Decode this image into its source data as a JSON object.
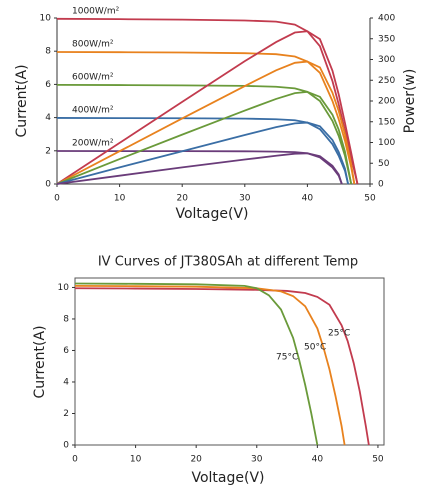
{
  "chart_data": [
    {
      "type": "line",
      "x_label": "Voltage(V)",
      "y_label": "Current(A)",
      "y2_label": "Power(w)",
      "xlim": [
        0,
        50
      ],
      "xticks": [
        0,
        10,
        20,
        30,
        40,
        50
      ],
      "ylim": [
        0,
        10
      ],
      "yticks": [
        0,
        2,
        4,
        6,
        8,
        10
      ],
      "y2lim": [
        0,
        400
      ],
      "y2ticks": [
        0,
        50,
        100,
        150,
        200,
        250,
        300,
        350,
        400
      ],
      "grid": false,
      "series": [
        {
          "name": "1000W/m²",
          "color": "#c23b4e",
          "x": [
            0,
            10,
            20,
            30,
            35,
            38,
            40,
            42,
            44,
            45,
            46,
            47,
            48
          ],
          "values": [
            9.95,
            9.93,
            9.9,
            9.85,
            9.78,
            9.6,
            9.2,
            8.3,
            6.2,
            4.8,
            3.2,
            1.6,
            0
          ]
        },
        {
          "name": "800W/m²",
          "color": "#e8821e",
          "x": [
            0,
            10,
            20,
            30,
            35,
            38,
            40,
            42,
            44,
            45,
            46,
            47,
            47.5
          ],
          "values": [
            7.95,
            7.94,
            7.92,
            7.88,
            7.82,
            7.68,
            7.38,
            6.7,
            5.0,
            3.9,
            2.6,
            1.0,
            0
          ]
        },
        {
          "name": "600W/m²",
          "color": "#6a9a3a",
          "x": [
            0,
            10,
            20,
            30,
            35,
            38,
            40,
            42,
            44,
            45,
            46,
            47
          ],
          "values": [
            5.97,
            5.96,
            5.94,
            5.91,
            5.86,
            5.76,
            5.55,
            5.0,
            3.8,
            2.9,
            1.7,
            0
          ]
        },
        {
          "name": "400W/m²",
          "color": "#3a6ea5",
          "x": [
            0,
            10,
            20,
            30,
            35,
            38,
            40,
            42,
            44,
            45,
            46,
            46.5
          ],
          "values": [
            3.98,
            3.97,
            3.96,
            3.94,
            3.9,
            3.84,
            3.7,
            3.3,
            2.4,
            1.7,
            0.8,
            0
          ]
        },
        {
          "name": "200W/m²",
          "color": "#6a3c7a",
          "x": [
            0,
            10,
            20,
            30,
            35,
            38,
            40,
            42,
            44,
            45,
            45.5
          ],
          "values": [
            1.99,
            1.98,
            1.98,
            1.97,
            1.95,
            1.92,
            1.85,
            1.6,
            1.0,
            0.5,
            0
          ]
        },
        {
          "axis": "y2",
          "color": "#c23b4e",
          "x": [
            0,
            10,
            20,
            30,
            35,
            38,
            40,
            42,
            44,
            45,
            46,
            47,
            48
          ],
          "values": [
            0,
            99,
            198,
            296,
            342,
            365,
            368,
            349,
            273,
            216,
            147,
            75,
            0
          ]
        },
        {
          "axis": "y2",
          "color": "#e8821e",
          "x": [
            0,
            10,
            20,
            30,
            35,
            38,
            40,
            42,
            44,
            45,
            46,
            47,
            47.5
          ],
          "values": [
            0,
            79,
            158,
            236,
            274,
            292,
            295,
            281,
            220,
            176,
            120,
            47,
            0
          ]
        },
        {
          "axis": "y2",
          "color": "#6a9a3a",
          "x": [
            0,
            10,
            20,
            30,
            35,
            38,
            40,
            42,
            44,
            45,
            46,
            47
          ],
          "values": [
            0,
            60,
            119,
            177,
            205,
            219,
            222,
            210,
            167,
            131,
            78,
            0
          ]
        },
        {
          "axis": "y2",
          "color": "#3a6ea5",
          "x": [
            0,
            10,
            20,
            30,
            35,
            38,
            40,
            42,
            44,
            45,
            46,
            46.5
          ],
          "values": [
            0,
            40,
            79,
            118,
            137,
            146,
            148,
            139,
            106,
            77,
            37,
            0
          ]
        },
        {
          "axis": "y2",
          "color": "#6a3c7a",
          "x": [
            0,
            10,
            20,
            30,
            35,
            38,
            40,
            42,
            44,
            45,
            45.5
          ],
          "values": [
            0,
            20,
            40,
            59,
            68,
            73,
            74,
            67,
            44,
            23,
            0
          ]
        }
      ]
    },
    {
      "type": "line",
      "title": "IV Curves of JT380SAh at different Temp",
      "x_label": "Voltage(V)",
      "y_label": "Current(A)",
      "xlim": [
        0,
        51
      ],
      "xticks": [
        0,
        10,
        20,
        30,
        40,
        50
      ],
      "ylim": [
        0,
        10.6
      ],
      "yticks": [
        0,
        2,
        4,
        6,
        8,
        10
      ],
      "grid": false,
      "series": [
        {
          "name": "25°C",
          "color": "#c23b4e",
          "x": [
            0,
            10,
            20,
            30,
            35,
            38,
            40,
            42,
            44,
            45,
            46,
            47,
            48,
            48.5
          ],
          "values": [
            9.95,
            9.93,
            9.9,
            9.85,
            9.78,
            9.65,
            9.4,
            8.9,
            7.6,
            6.6,
            5.2,
            3.4,
            1.2,
            0
          ]
        },
        {
          "name": "50°C",
          "color": "#e8821e",
          "x": [
            0,
            10,
            20,
            30,
            34,
            36,
            38,
            40,
            41,
            42,
            43,
            44,
            44.5
          ],
          "values": [
            10.1,
            10.08,
            10.05,
            9.95,
            9.75,
            9.45,
            8.8,
            7.4,
            6.2,
            4.8,
            3.1,
            1.2,
            0
          ]
        },
        {
          "name": "75°C",
          "color": "#6a9a3a",
          "x": [
            0,
            10,
            20,
            28,
            30,
            32,
            34,
            36,
            37,
            38,
            39,
            39.5,
            40
          ],
          "values": [
            10.25,
            10.23,
            10.2,
            10.1,
            9.95,
            9.5,
            8.6,
            6.8,
            5.4,
            3.8,
            2.0,
            1.0,
            0
          ]
        }
      ]
    }
  ]
}
